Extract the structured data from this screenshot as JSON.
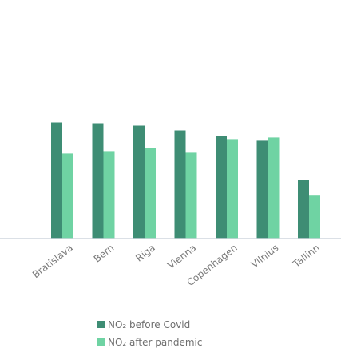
{
  "chart_data": {
    "type": "bar",
    "categories": [
      "Bratislava",
      "Bern",
      "Riga",
      "Vienna",
      "Copenhagen",
      "Vilnius",
      "Tallinn"
    ],
    "series": [
      {
        "name": "NO₂ before Covid",
        "color": "#3e8d74",
        "values": [
          146,
          145,
          142,
          136,
          129,
          123,
          74
        ]
      },
      {
        "name": "NO₂ after pandemic",
        "color": "#6fd3a3",
        "values": [
          107,
          110,
          114,
          108,
          125,
          127,
          55
        ]
      }
    ],
    "title": "",
    "xlabel": "",
    "ylabel": "",
    "ylim": [
      0,
      300
    ],
    "grid": false,
    "legend_position": "bottom-center"
  }
}
